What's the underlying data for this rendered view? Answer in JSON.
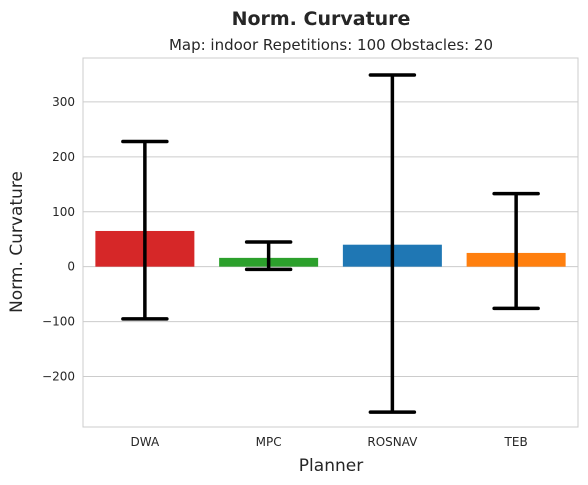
{
  "chart_data": {
    "type": "bar",
    "title": "Norm. Curvature",
    "subtitle": "Map: indoor Repetitions: 100 Obstacles: 20",
    "xlabel": "Planner",
    "ylabel": "Norm. Curvature",
    "ylim": [
      -292,
      380
    ],
    "yticks": [
      -200,
      -100,
      0,
      100,
      200,
      300
    ],
    "ytick_labels": [
      "−200",
      "−100",
      "0",
      "100",
      "200",
      "300"
    ],
    "grid": true,
    "categories": [
      "DWA",
      "MPC",
      "ROSNAV",
      "TEB"
    ],
    "values": [
      65,
      16,
      40,
      25
    ],
    "error_low": [
      -95,
      -5,
      -265,
      -76
    ],
    "error_high": [
      228,
      45,
      349,
      133
    ],
    "colors": [
      "#d62728",
      "#2ca02c",
      "#1f77b4",
      "#ff7f0e"
    ],
    "error_color": "#000000"
  }
}
